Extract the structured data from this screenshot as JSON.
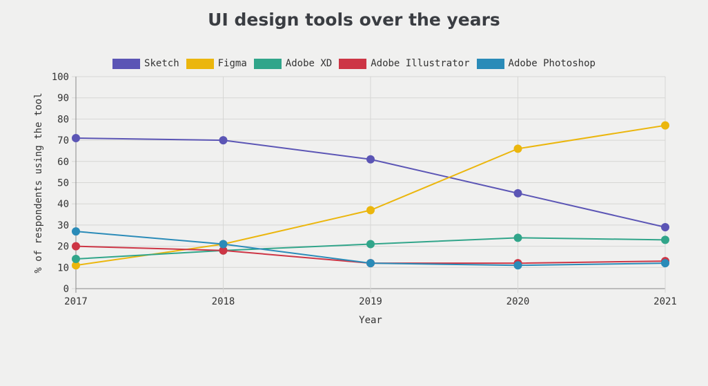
{
  "chart_data": {
    "type": "line",
    "title": "UI design tools over the years",
    "xlabel": "Year",
    "ylabel": "% of respondents using the tool",
    "categories": [
      "2017",
      "2018",
      "2019",
      "2020",
      "2021"
    ],
    "ylim": [
      0,
      100
    ],
    "yticks": [
      0,
      10,
      20,
      30,
      40,
      50,
      60,
      70,
      80,
      90,
      100
    ],
    "grid": true,
    "legend_position": "top-center",
    "series": [
      {
        "name": "Sketch",
        "color": "#5b55b5",
        "values": [
          71,
          70,
          61,
          45,
          29
        ]
      },
      {
        "name": "Figma",
        "color": "#ebb60d",
        "values": [
          11,
          21,
          37,
          66,
          77
        ]
      },
      {
        "name": "Adobe XD",
        "color": "#31a58a",
        "values": [
          14,
          18,
          21,
          24,
          23
        ]
      },
      {
        "name": "Adobe Illustrator",
        "color": "#cd3545",
        "values": [
          20,
          18,
          12,
          12,
          13
        ]
      },
      {
        "name": "Adobe Photoshop",
        "color": "#2a8bb8",
        "values": [
          27,
          21,
          12,
          11,
          12
        ]
      }
    ]
  }
}
